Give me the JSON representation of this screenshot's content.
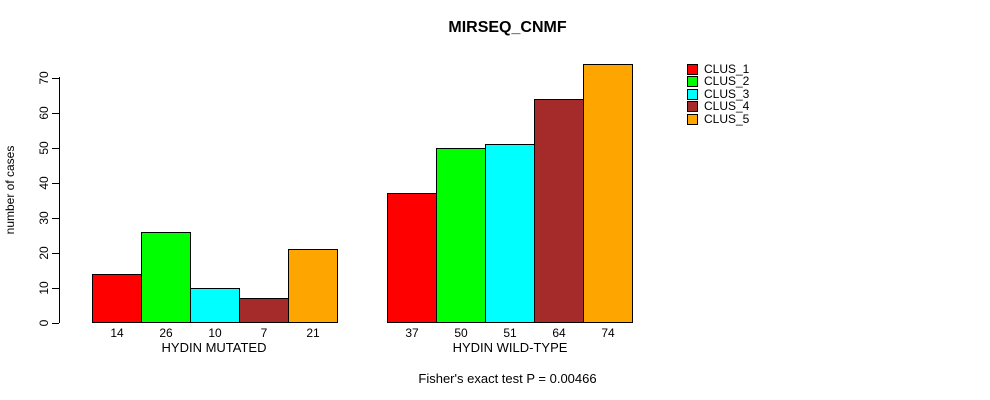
{
  "chart_data": {
    "type": "bar",
    "title": "MIRSEQ_CNMF",
    "ylabel": "number of cases",
    "xlabel": "",
    "ylim": [
      0,
      70
    ],
    "yticks": [
      0,
      10,
      20,
      30,
      40,
      50,
      60,
      70
    ],
    "grid": false,
    "legend_position": "right",
    "groups": [
      "HYDIN MUTATED",
      "HYDIN WILD-TYPE"
    ],
    "series": [
      {
        "name": "CLUS_1",
        "color": "#ff0000",
        "values": [
          14,
          37
        ]
      },
      {
        "name": "CLUS_2",
        "color": "#00ff00",
        "values": [
          26,
          50
        ]
      },
      {
        "name": "CLUS_3",
        "color": "#00ffff",
        "values": [
          10,
          51
        ]
      },
      {
        "name": "CLUS_4",
        "color": "#a52a2a",
        "values": [
          7,
          64
        ]
      },
      {
        "name": "CLUS_5",
        "color": "#ffa500",
        "values": [
          21,
          74
        ]
      }
    ],
    "bar_value_labels": {
      "HYDIN MUTATED": [
        14,
        26,
        10,
        7,
        21
      ],
      "HYDIN WILD-TYPE": [
        37,
        50,
        51,
        64,
        74
      ]
    },
    "annotation": "Fisher's exact test P = 0.00466"
  }
}
